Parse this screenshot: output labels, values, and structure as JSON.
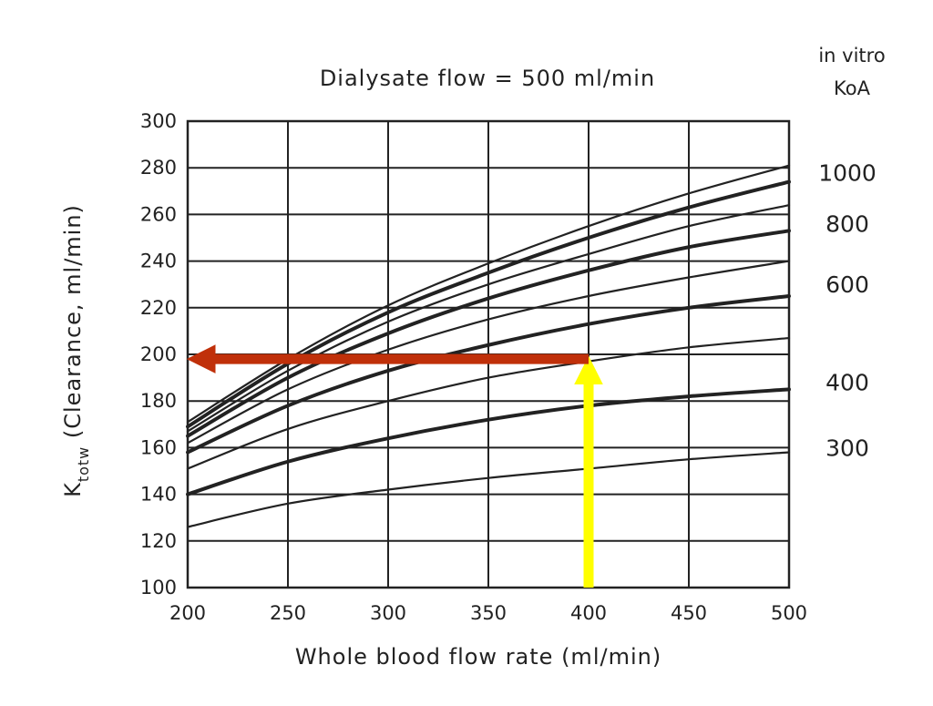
{
  "chart_data": {
    "type": "line",
    "title": "Dialysate flow = 500 ml/min",
    "xlabel": "Whole blood flow rate (ml/min)",
    "ylabel_main": "K",
    "ylabel_sub": "totw",
    "ylabel_rest": " (Clearance, ml/min)",
    "right_header": [
      "in vitro",
      "KoA"
    ],
    "xlim": [
      200,
      500
    ],
    "ylim": [
      100,
      300
    ],
    "x_ticks": [
      200,
      250,
      300,
      350,
      400,
      450,
      500
    ],
    "y_ticks": [
      100,
      120,
      140,
      160,
      180,
      200,
      220,
      240,
      260,
      280,
      300
    ],
    "grid": true,
    "right_labels": [
      {
        "text": "1000",
        "y": 278
      },
      {
        "text": "800",
        "y": 256
      },
      {
        "text": "600",
        "y": 230
      },
      {
        "text": "400",
        "y": 188
      },
      {
        "text": "300",
        "y": 160
      }
    ],
    "x": [
      200,
      250,
      300,
      350,
      400,
      450,
      500
    ],
    "series": [
      {
        "bold": false,
        "values": [
          126,
          136,
          142,
          147,
          151,
          155,
          158
        ]
      },
      {
        "bold": true,
        "values": [
          140,
          154,
          164,
          172,
          178,
          182,
          185
        ]
      },
      {
        "bold": false,
        "values": [
          151,
          168,
          180,
          190,
          197,
          203,
          207
        ]
      },
      {
        "bold": true,
        "values": [
          158,
          178,
          193,
          204,
          213,
          220,
          225
        ]
      },
      {
        "bold": false,
        "values": [
          162,
          185,
          202,
          215,
          225,
          233,
          240
        ]
      },
      {
        "bold": true,
        "values": [
          165,
          190,
          209,
          224,
          236,
          246,
          253
        ]
      },
      {
        "bold": false,
        "values": [
          167,
          193,
          214,
          230,
          243,
          255,
          264
        ]
      },
      {
        "bold": true,
        "values": [
          169,
          196,
          218,
          235,
          250,
          263,
          274
        ]
      },
      {
        "bold": false,
        "values": [
          171,
          198,
          221,
          239,
          255,
          269,
          281
        ]
      }
    ],
    "annotations": [
      {
        "name": "yellow-arrow",
        "color": "#ffff00",
        "from": [
          400,
          100
        ],
        "to": [
          400,
          199
        ]
      },
      {
        "name": "red-arrow",
        "color": "#c0300a",
        "from": [
          400,
          198
        ],
        "to": [
          200,
          198
        ]
      }
    ]
  }
}
